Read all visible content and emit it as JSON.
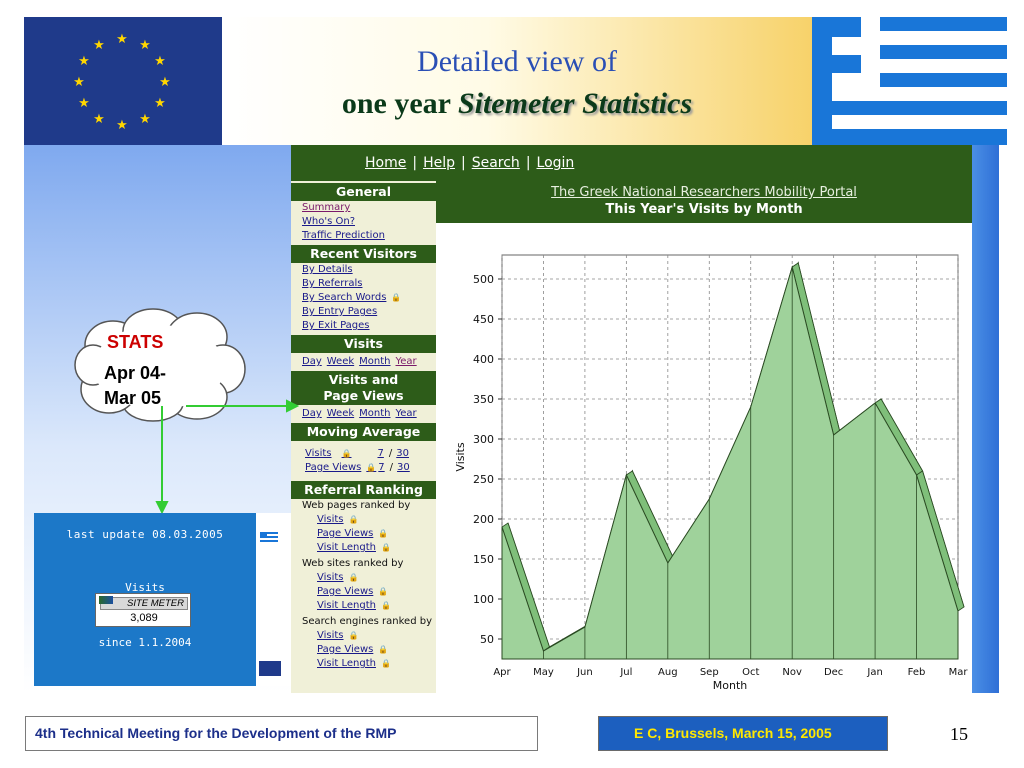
{
  "header": {
    "title_line1": "Detailed view of",
    "title_line2_plain": "one year ",
    "title_line2_italic": "Sitemeter Statistics"
  },
  "webpage": {
    "nav": {
      "home": "Home",
      "help": "Help",
      "search": "Search",
      "login": "Login"
    },
    "portal_link": "The Greek National Researchers Mobility Portal",
    "sidebar": {
      "general": {
        "title": "General",
        "items": [
          "Summary",
          "Who's On?",
          "Traffic Prediction"
        ]
      },
      "recent_visitors": {
        "title": "Recent Visitors",
        "items": [
          "By Details",
          "By Referrals",
          "By Search Words",
          "By Entry Pages",
          "By Exit Pages"
        ]
      },
      "visits": {
        "title": "Visits",
        "links": [
          "Day",
          "Week",
          "Month",
          "Year"
        ]
      },
      "visits_pv": {
        "title_line1": "Visits and",
        "title_line2": "Page Views",
        "links": [
          "Day",
          "Week",
          "Month",
          "Year"
        ]
      },
      "moving_average": {
        "title": "Moving Average",
        "row1_label": "Visits",
        "row1_a": "7",
        "row1_b": "30",
        "row2_label": "Page Views",
        "row2_a": "7",
        "row2_b": "30",
        "slash": "/"
      },
      "referral_ranking": {
        "title": "Referral Ranking",
        "web_pages_label": "Web pages ranked by",
        "web_sites_label": "Web sites ranked by",
        "search_engines_label": "Search engines ranked by",
        "sub_items": [
          "Visits",
          "Page Views",
          "Visit Length"
        ]
      }
    }
  },
  "callout": {
    "stats": "STATS",
    "line2": "Apr 04-",
    "line3": "Mar 05"
  },
  "site_meter": {
    "last_update": "last update  08.03.2005",
    "visits_label": "Visits",
    "badge_brand": "SITE METER",
    "count": "3,089",
    "since": "since 1.1.2004"
  },
  "footer": {
    "left": "4th Technical Meeting for the Development of the RMP",
    "right": "E C,   Brussels, March 15, 2005",
    "slide_number": "15"
  },
  "chart_data": {
    "type": "area",
    "title": "This Year's Visits by Month",
    "xlabel": "Month",
    "ylabel": "Visits",
    "categories": [
      "Apr",
      "May",
      "Jun",
      "Jul",
      "Aug",
      "Sep",
      "Oct",
      "Nov",
      "Dec",
      "Jan",
      "Feb",
      "Mar"
    ],
    "values": [
      190,
      35,
      65,
      255,
      145,
      225,
      340,
      515,
      305,
      345,
      255,
      85
    ],
    "yticks": [
      50,
      100,
      150,
      200,
      250,
      300,
      350,
      400,
      450,
      500
    ],
    "ylim": [
      25,
      530
    ],
    "grid": true,
    "fill_color": "#9fd29b",
    "edge_color": "#2a4a22"
  },
  "colors": {
    "nav_green": "#2d5c19",
    "sidebar_bg": "#f0f0d8",
    "meter_blue": "#1c78c8",
    "stats_red": "#cc0000",
    "footer_yellow": "#ffe800"
  }
}
